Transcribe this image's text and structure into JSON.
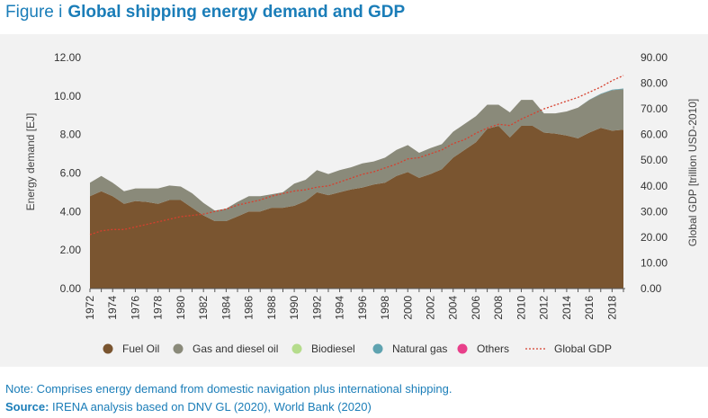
{
  "figure": {
    "prefix": "Figure i",
    "title": "Global shipping energy demand and GDP"
  },
  "note": "Note: Comprises energy demand from domestic navigation plus international shipping.",
  "source": {
    "label": "Source:",
    "text": " IRENA analysis based on DNV GL (2020), World Bank (2020)"
  },
  "chart_data": {
    "type": "area",
    "x": [
      1972,
      1973,
      1974,
      1975,
      1976,
      1977,
      1978,
      1979,
      1980,
      1981,
      1982,
      1983,
      1984,
      1985,
      1986,
      1987,
      1988,
      1989,
      1990,
      1991,
      1992,
      1993,
      1994,
      1995,
      1996,
      1997,
      1998,
      1999,
      2000,
      2001,
      2002,
      2003,
      2004,
      2005,
      2006,
      2007,
      2008,
      2009,
      2010,
      2011,
      2012,
      2013,
      2014,
      2015,
      2016,
      2017,
      2018,
      2019
    ],
    "x_ticks": [
      "1972",
      "1974",
      "1976",
      "1978",
      "1980",
      "1982",
      "1984",
      "1986",
      "1988",
      "1990",
      "1992",
      "1994",
      "1996",
      "1998",
      "2000",
      "2002",
      "2004",
      "2006",
      "2008",
      "2010",
      "2012",
      "2014",
      "2016",
      "2018"
    ],
    "y_left": {
      "label": "Energy demand [EJ]",
      "ticks": [
        "0.00",
        "2.00",
        "4.00",
        "6.00",
        "8.00",
        "10.00",
        "12.00"
      ],
      "range": [
        0,
        12
      ]
    },
    "y_right": {
      "label": "Global GDP [trillion USD-2010]",
      "ticks": [
        "0.00",
        "10.00",
        "20.00",
        "30.00",
        "40.00",
        "50.00",
        "60.00",
        "70.00",
        "80.00",
        "90.00"
      ],
      "range": [
        0,
        90
      ]
    },
    "series": [
      {
        "name": "Fuel Oil",
        "color": "#7a5530",
        "axis": "left",
        "stack": true,
        "values": [
          4.8,
          5.05,
          4.8,
          4.4,
          4.55,
          4.5,
          4.4,
          4.6,
          4.6,
          4.2,
          3.8,
          3.5,
          3.5,
          3.75,
          4.0,
          4.0,
          4.2,
          4.2,
          4.3,
          4.55,
          5.0,
          4.85,
          5.0,
          5.15,
          5.25,
          5.4,
          5.5,
          5.85,
          6.05,
          5.75,
          5.95,
          6.2,
          6.8,
          7.2,
          7.6,
          8.3,
          8.45,
          7.85,
          8.45,
          8.45,
          8.1,
          8.05,
          7.95,
          7.8,
          8.1,
          8.35,
          8.2,
          8.25
        ]
      },
      {
        "name": "Gas and diesel oil",
        "color": "#8a8a7a",
        "axis": "left",
        "stack": true,
        "values": [
          0.7,
          0.8,
          0.7,
          0.65,
          0.65,
          0.7,
          0.8,
          0.75,
          0.7,
          0.75,
          0.65,
          0.55,
          0.65,
          0.75,
          0.8,
          0.8,
          0.7,
          0.8,
          1.15,
          1.1,
          1.15,
          1.1,
          1.15,
          1.15,
          1.25,
          1.2,
          1.3,
          1.35,
          1.4,
          1.3,
          1.35,
          1.3,
          1.35,
          1.35,
          1.35,
          1.25,
          1.1,
          1.3,
          1.35,
          1.35,
          1.0,
          1.05,
          1.25,
          1.6,
          1.7,
          1.75,
          2.1,
          2.1
        ]
      },
      {
        "name": "Biodiesel",
        "color": "#b5dc8c",
        "axis": "left",
        "stack": true,
        "values": [
          0,
          0,
          0,
          0,
          0,
          0,
          0,
          0,
          0,
          0,
          0,
          0,
          0,
          0,
          0,
          0,
          0,
          0,
          0,
          0,
          0,
          0,
          0,
          0,
          0,
          0,
          0,
          0,
          0,
          0,
          0,
          0,
          0,
          0,
          0,
          0,
          0,
          0,
          0,
          0,
          0,
          0,
          0,
          0,
          0,
          0,
          0,
          0
        ]
      },
      {
        "name": "Natural gas",
        "color": "#5fa3b0",
        "axis": "left",
        "stack": true,
        "values": [
          0,
          0,
          0,
          0,
          0,
          0,
          0,
          0,
          0,
          0,
          0,
          0,
          0,
          0,
          0,
          0,
          0,
          0,
          0,
          0,
          0,
          0,
          0,
          0,
          0,
          0,
          0,
          0,
          0,
          0,
          0,
          0,
          0,
          0,
          0,
          0,
          0,
          0,
          0,
          0,
          0,
          0,
          0,
          0,
          0.01,
          0.02,
          0.03,
          0.04
        ]
      },
      {
        "name": "Others",
        "color": "#e8408a",
        "axis": "left",
        "stack": true,
        "values": [
          0,
          0,
          0,
          0,
          0,
          0,
          0,
          0,
          0,
          0,
          0,
          0,
          0,
          0,
          0,
          0,
          0,
          0,
          0,
          0,
          0,
          0,
          0,
          0,
          0,
          0,
          0,
          0,
          0,
          0,
          0,
          0,
          0,
          0,
          0,
          0,
          0,
          0,
          0,
          0,
          0,
          0,
          0,
          0,
          0,
          0,
          0,
          0
        ]
      },
      {
        "name": "Global GDP",
        "color": "#d6402e",
        "axis": "right",
        "stack": false,
        "style": "dotted",
        "values": [
          21.0,
          22.5,
          23.0,
          23.0,
          24.0,
          25.0,
          26.0,
          27.0,
          28.0,
          28.5,
          29.0,
          30.0,
          31.0,
          32.5,
          33.5,
          34.5,
          36.0,
          37.0,
          38.0,
          38.5,
          39.5,
          40.0,
          41.5,
          43.0,
          44.5,
          45.5,
          47.0,
          48.5,
          50.5,
          51.0,
          52.5,
          54.0,
          56.5,
          58.0,
          60.5,
          62.5,
          64.0,
          63.5,
          66.0,
          68.0,
          70.0,
          71.5,
          73.0,
          74.5,
          76.5,
          78.5,
          81.0,
          83.0
        ]
      }
    ],
    "legend_position": "bottom",
    "grid": false
  }
}
